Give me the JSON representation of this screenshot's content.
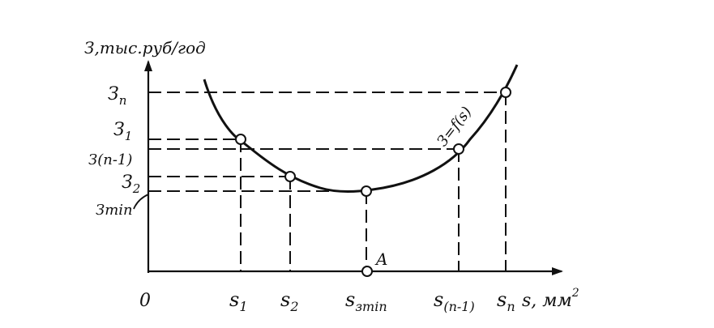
{
  "labels": {
    "y_axis": "З,тыс.руб/год",
    "x_axis": "s, мм",
    "x_axis_sup": "2",
    "origin": "0",
    "curve": "З=f(s)",
    "point_a": "A"
  },
  "y_ticks": [
    {
      "id": "zn",
      "main": "З",
      "sub": "n"
    },
    {
      "id": "z1",
      "main": "З",
      "sub": "1"
    },
    {
      "id": "zn1",
      "main": "З(n-1)",
      "sub": ""
    },
    {
      "id": "z2",
      "main": "З",
      "sub": "2"
    },
    {
      "id": "zmin",
      "main": "Зmin",
      "sub": ""
    }
  ],
  "x_ticks": [
    {
      "id": "s1",
      "main": "s",
      "sub": "1"
    },
    {
      "id": "s2",
      "main": "s",
      "sub": "2"
    },
    {
      "id": "szmin",
      "main": "s",
      "sub": "зmin"
    },
    {
      "id": "sn1",
      "main": "s",
      "sub": "(n-1)"
    },
    {
      "id": "sn",
      "main": "s",
      "sub": "n"
    }
  ],
  "colors": {
    "ink": "#111111",
    "background": "#ffffff"
  }
}
